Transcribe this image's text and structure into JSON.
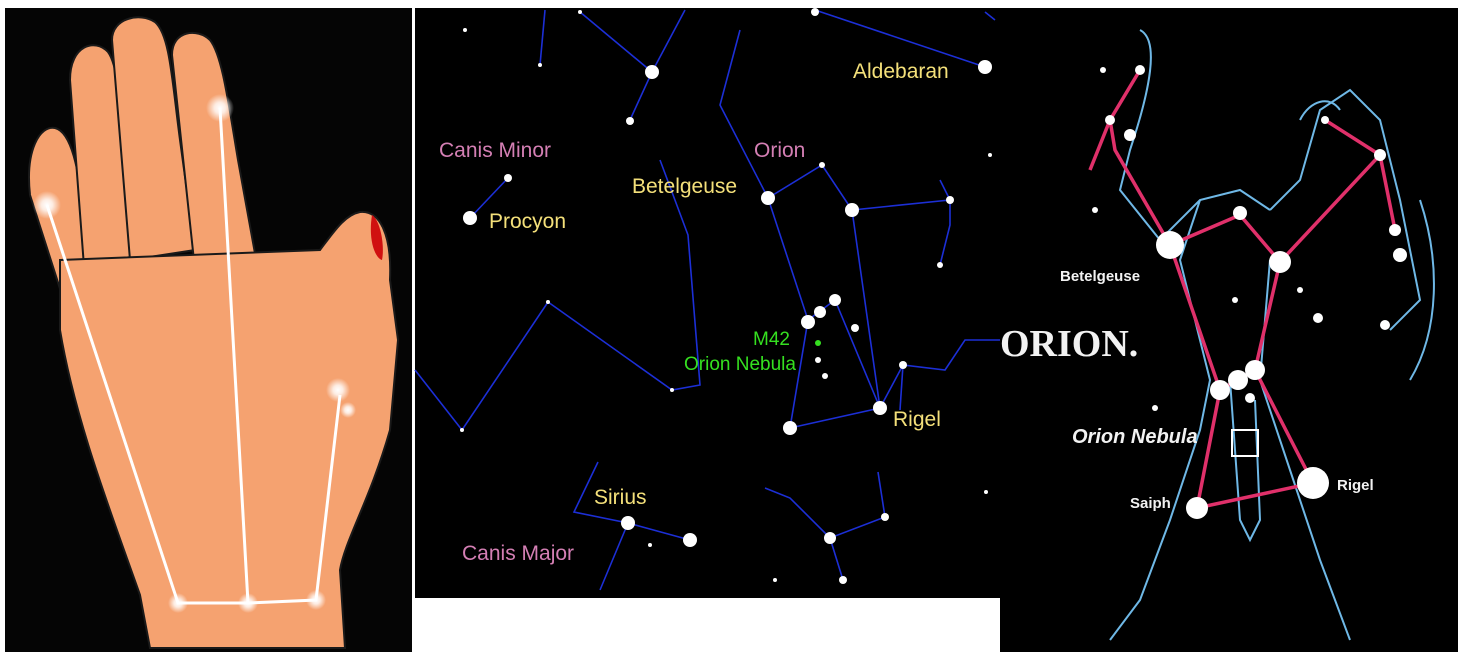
{
  "star_map": {
    "labels": [
      "Aldebaran",
      "Canis Minor",
      "Orion",
      "Betelgeuse",
      "Procyon",
      "M42",
      "Orion Nebula",
      "Rigel",
      "Sirius",
      "Canis Major"
    ]
  },
  "figure": {
    "labels": [
      "Betelgeuse",
      "ORION.",
      "Orion Nebula",
      "Saiph",
      "Rigel"
    ]
  }
}
